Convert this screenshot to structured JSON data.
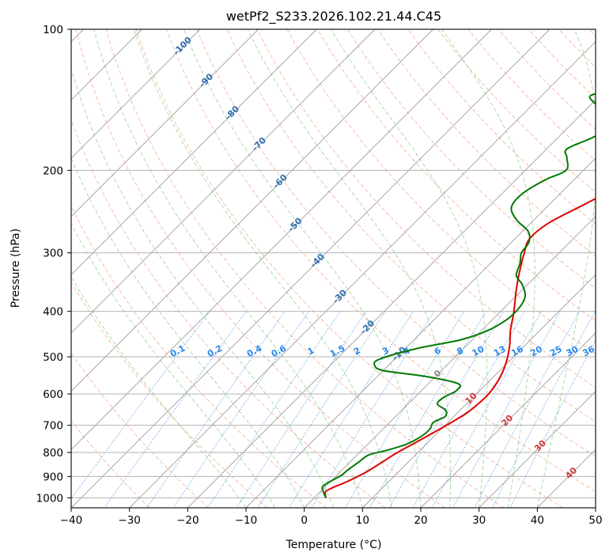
{
  "chart_data": {
    "type": "line",
    "subtype": "skew-T log-P diagram",
    "title": "wetPf2_S233.2026.102.21.44.C45",
    "xlabel": "Temperature (°C)",
    "ylabel": "Pressure (hPa)",
    "xlim": [
      -40,
      50
    ],
    "ylim": [
      1050,
      100
    ],
    "y_scale": "log",
    "grid": true,
    "x_ticks": [
      "−40",
      "−30",
      "−20",
      "−10",
      "0",
      "10",
      "20",
      "30",
      "40",
      "50"
    ],
    "y_ticks": [
      "100",
      "200",
      "300",
      "400",
      "500",
      "600",
      "700",
      "800",
      "900",
      "1000"
    ],
    "series": [
      {
        "color": "#e00000",
        "points": [
          [
            2.0,
            1000
          ],
          [
            0.9,
            970
          ],
          [
            1.5,
            950
          ],
          [
            3.0,
            920
          ],
          [
            4.5,
            880
          ],
          [
            5.5,
            840
          ],
          [
            6.5,
            800
          ],
          [
            8.0,
            760
          ],
          [
            9.5,
            720
          ],
          [
            10.6,
            690
          ],
          [
            11.6,
            660
          ],
          [
            12.0,
            630
          ],
          [
            12.1,
            600
          ],
          [
            11.4,
            560
          ],
          [
            10.4,
            530
          ],
          [
            9.0,
            500
          ],
          [
            7.2,
            470
          ],
          [
            5.0,
            440
          ],
          [
            3.0,
            410
          ],
          [
            1.5,
            390
          ],
          [
            -1.0,
            360
          ],
          [
            -3.5,
            330
          ],
          [
            -6.0,
            300
          ],
          [
            -7.5,
            280
          ],
          [
            -7.0,
            260
          ],
          [
            -4.5,
            240
          ],
          [
            -1.5,
            220
          ],
          [
            2.5,
            200
          ],
          [
            6.5,
            185
          ],
          [
            10.5,
            170
          ],
          [
            14.0,
            160
          ],
          [
            18.0,
            150
          ],
          [
            20.5,
            140
          ],
          [
            21.5,
            130
          ],
          [
            21.5,
            120
          ],
          [
            23.5,
            113
          ],
          [
            25.0,
            107
          ],
          [
            27.0,
            100
          ]
        ]
      },
      {
        "color": "#007a00",
        "points": [
          [
            2.0,
            1000
          ],
          [
            0.5,
            970
          ],
          [
            -0.5,
            945
          ],
          [
            0.0,
            920
          ],
          [
            0.8,
            895
          ],
          [
            1.0,
            870
          ],
          [
            1.5,
            840
          ],
          [
            2.0,
            810
          ],
          [
            4.5,
            790
          ],
          [
            6.5,
            770
          ],
          [
            7.5,
            750
          ],
          [
            8.0,
            730
          ],
          [
            8.0,
            710
          ],
          [
            7.5,
            690
          ],
          [
            8.5,
            670
          ],
          [
            7.5,
            650
          ],
          [
            5.0,
            630
          ],
          [
            5.0,
            610
          ],
          [
            6.0,
            590
          ],
          [
            5.0,
            570
          ],
          [
            -2.0,
            550
          ],
          [
            -10.0,
            535
          ],
          [
            -12.5,
            520
          ],
          [
            -12.5,
            505
          ],
          [
            -8.0,
            480
          ],
          [
            -2.0,
            460
          ],
          [
            1.0,
            440
          ],
          [
            2.5,
            415
          ],
          [
            2.5,
            390
          ],
          [
            1.5,
            370
          ],
          [
            -1.0,
            350
          ],
          [
            -3.5,
            335
          ],
          [
            -5.0,
            315
          ],
          [
            -6.5,
            300
          ],
          [
            -7.0,
            285
          ],
          [
            -9.0,
            270
          ],
          [
            -13.0,
            255
          ],
          [
            -16.0,
            240
          ],
          [
            -16.5,
            225
          ],
          [
            -15.0,
            210
          ],
          [
            -13.0,
            200
          ],
          [
            -15.0,
            188
          ],
          [
            -16.5,
            180
          ],
          [
            -14.0,
            170
          ],
          [
            -12.5,
            160
          ],
          [
            -16.0,
            150
          ],
          [
            -20.0,
            143
          ],
          [
            -21.5,
            138
          ],
          [
            -17.0,
            135
          ],
          [
            -12.0,
            131
          ],
          [
            -8.5,
            125
          ],
          [
            -6.0,
            118
          ],
          [
            -4.0,
            110
          ],
          [
            -3.0,
            105
          ],
          [
            -2.5,
            100
          ]
        ]
      }
    ],
    "background_lines": {
      "isotherms_skewed": "gray",
      "dry_adiabats": "light red dashed",
      "moist_adiabats": "light green dashed",
      "mixing_ratio_lines": "blue dotted"
    },
    "mixing_ratio_labels": [
      "0.1",
      "0.2",
      "0.4",
      "0.6",
      "1",
      "1.5",
      "2",
      "3",
      "4",
      "6",
      "8",
      "10",
      "13",
      "16",
      "20",
      "25",
      "30",
      "36"
    ],
    "height_labels": [
      "-100",
      "-90",
      "-80",
      "-70",
      "-60",
      "-50",
      "-40",
      "-30",
      "-20",
      "-10",
      "0",
      "10",
      "20",
      "30",
      "40"
    ]
  }
}
